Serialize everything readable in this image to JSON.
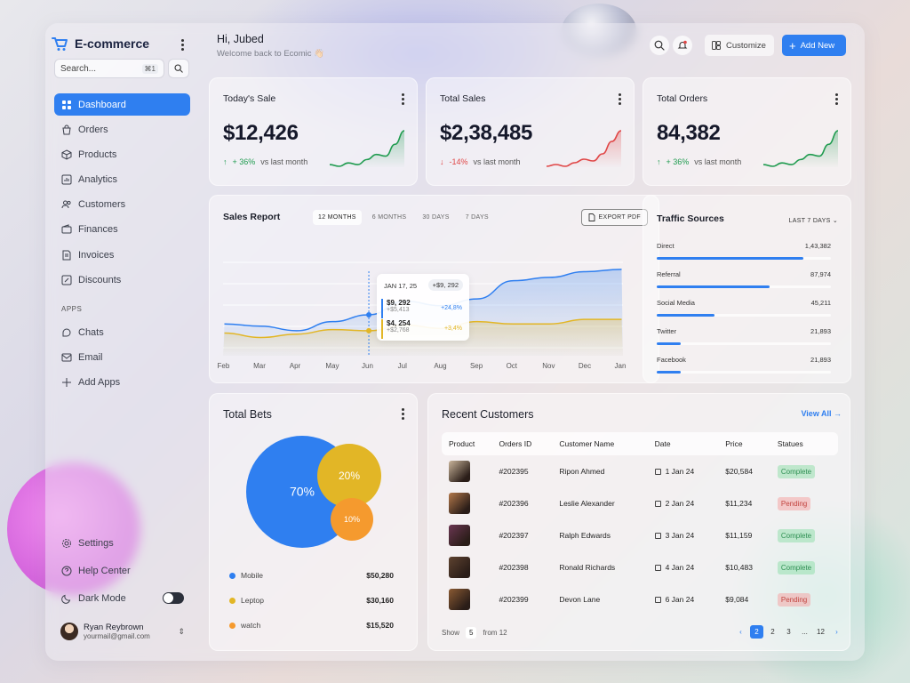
{
  "brand": {
    "name": "E-commerce",
    "accent": "#2f7ff0"
  },
  "sidebar": {
    "search_placeholder": "Search...",
    "search_shortcut": "⌘1",
    "items": [
      {
        "label": "Dashboard",
        "icon": "dashboard-icon",
        "active": true
      },
      {
        "label": "Orders",
        "icon": "bag-icon"
      },
      {
        "label": "Products",
        "icon": "box-icon"
      },
      {
        "label": "Analytics",
        "icon": "chart-icon"
      },
      {
        "label": "Customers",
        "icon": "users-icon"
      },
      {
        "label": "Finances",
        "icon": "wallet-icon"
      },
      {
        "label": "Invoices",
        "icon": "invoice-icon"
      },
      {
        "label": "Discounts",
        "icon": "discount-icon"
      }
    ],
    "apps_label": "APPS",
    "apps": [
      {
        "label": "Chats",
        "icon": "chat-icon"
      },
      {
        "label": "Email",
        "icon": "mail-icon"
      },
      {
        "label": "Add Apps",
        "icon": "plus-icon"
      }
    ],
    "bottom": [
      {
        "label": "Settings",
        "icon": "gear-icon"
      },
      {
        "label": "Help Center",
        "icon": "help-icon"
      },
      {
        "label": "Dark Mode",
        "icon": "moon-icon"
      }
    ],
    "user": {
      "name": "Ryan Reybrown",
      "email": "yourmail@gmail.com"
    }
  },
  "header": {
    "greeting": "Hi, Jubed",
    "subtitle": "Welcome back to Ecomic 👋🏻",
    "customize_label": "Customize",
    "add_label": "Add New"
  },
  "kpis": [
    {
      "title": "Today's Sale",
      "value": "$12,426",
      "delta": "+ 36%",
      "delta_dir": "up",
      "compare": "vs last month",
      "color": "#1f9b4f",
      "trend": [
        10,
        9,
        11,
        10,
        13,
        16,
        15,
        22,
        30
      ]
    },
    {
      "title": "Total Sales",
      "value": "$2,38,485",
      "delta": "-14%",
      "delta_dir": "down",
      "compare": "vs last month",
      "color": "#e04646",
      "trend": [
        10,
        11,
        10,
        12,
        14,
        13,
        17,
        24,
        30
      ]
    },
    {
      "title": "Total Orders",
      "value": "84,382",
      "delta": "+ 36%",
      "delta_dir": "up",
      "compare": "vs last month",
      "color": "#1f9b4f",
      "trend": [
        10,
        9,
        11,
        10,
        13,
        16,
        15,
        22,
        30
      ]
    }
  ],
  "sales_report": {
    "title": "Sales Report",
    "tabs": [
      "12 MONTHS",
      "6 MONTHS",
      "30 DAYS",
      "7 DAYS"
    ],
    "active_tab": 0,
    "export_label": "EXPORT PDF",
    "tooltip": {
      "date": "JAN 17, 25",
      "total": "+$9, 292",
      "rows": [
        {
          "value": "$9, 292",
          "sub": "+$5,413",
          "pct": "+24,8%",
          "color": "#2f7ff0"
        },
        {
          "value": "$4, 254",
          "sub": "+$2,768",
          "pct": "+3,4%",
          "color": "#e2b626"
        }
      ]
    }
  },
  "chart_data": {
    "type": "area",
    "categories": [
      "Feb",
      "Mar",
      "Apr",
      "May",
      "Jun",
      "Jul",
      "Aug",
      "Sep",
      "Oct",
      "Nov",
      "Dec",
      "Jan"
    ],
    "series": [
      {
        "values": [
          58,
          56,
          52,
          60,
          66,
          78,
          74,
          80,
          96,
          99,
          104,
          106
        ],
        "color": "#2f7ff0"
      },
      {
        "values": [
          50,
          46,
          49,
          53,
          52,
          57,
          54,
          60,
          58,
          58,
          62,
          62
        ],
        "color": "#e2b626"
      }
    ],
    "ylim": [
      30,
      120
    ]
  },
  "traffic": {
    "title": "Traffic Sources",
    "range_label": "LAST 7 DAYS",
    "rows": [
      {
        "label": "Direct",
        "value": "1,43,382",
        "fraction": 0.84
      },
      {
        "label": "Referral",
        "value": "87,974",
        "fraction": 0.65
      },
      {
        "label": "Social Media",
        "value": "45,211",
        "fraction": 0.33
      },
      {
        "label": "Twitter",
        "value": "21,893",
        "fraction": 0.14
      },
      {
        "label": "Facebook",
        "value": "21,893",
        "fraction": 0.14
      }
    ]
  },
  "total_bets": {
    "title": "Total Bets",
    "bubbles": [
      {
        "label": "70%",
        "color": "#2f7ff0"
      },
      {
        "label": "20%",
        "color": "#e2b626"
      },
      {
        "label": "10%",
        "color": "#f59a2e"
      }
    ],
    "legend": [
      {
        "label": "Mobile",
        "amount": "$50,280",
        "color": "#2f7ff0"
      },
      {
        "label": "Leptop",
        "amount": "$30,160",
        "color": "#e2b626"
      },
      {
        "label": "watch",
        "amount": "$15,520",
        "color": "#f59a2e"
      }
    ]
  },
  "recent": {
    "title": "Recent Customers",
    "view_all": "View All",
    "columns": [
      "Product",
      "Orders ID",
      "Customer Name",
      "Date",
      "Price",
      "Statues"
    ],
    "rows": [
      {
        "order": "#202395",
        "name": "Ripon Ahmed",
        "date": "1 Jan 24",
        "price": "$20,584",
        "status": "Complete",
        "thumb": "#c9b49a"
      },
      {
        "order": "#202396",
        "name": "Leslie Alexander",
        "date": "2 Jan 24",
        "price": "$11,234",
        "status": "Pending",
        "thumb": "#b3794b"
      },
      {
        "order": "#202397",
        "name": "Ralph Edwards",
        "date": "3 Jan 24",
        "price": "$11,159",
        "status": "Complete",
        "thumb": "#6b3652"
      },
      {
        "order": "#202398",
        "name": "Ronald Richards",
        "date": "4 Jan 24",
        "price": "$10,483",
        "status": "Complete",
        "thumb": "#5e4330"
      },
      {
        "order": "#202399",
        "name": "Devon Lane",
        "date": "6 Jan 24",
        "price": "$9,084",
        "status": "Pending",
        "thumb": "#8a5a33"
      }
    ],
    "show_label": "Show",
    "show_value": "5",
    "show_suffix": "from 12",
    "pages": [
      "2",
      "2",
      "3",
      "...",
      "12"
    ],
    "active_page": 0
  }
}
